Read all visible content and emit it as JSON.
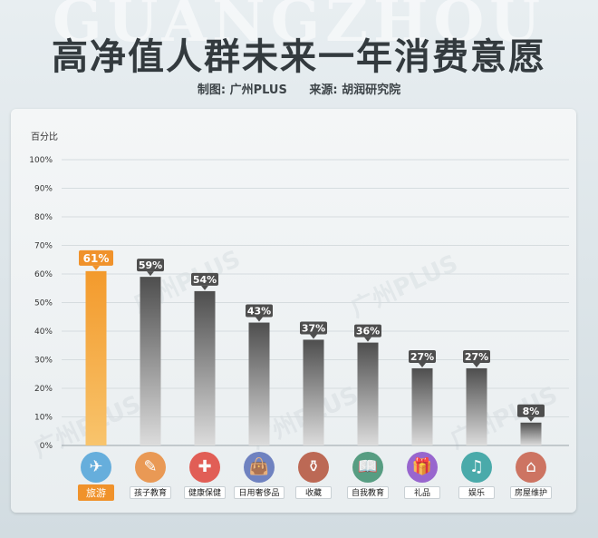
{
  "header": {
    "watermark": "GUANGZHOU",
    "title": "高净值人群未来一年消费意愿",
    "credit_maker": "制图: 广州PLUS",
    "credit_source": "来源: 胡润研究院"
  },
  "watermark_small": "广州PLUS",
  "colors": {
    "highlight": "#f0922b",
    "bar_dark": "#4e4e4e",
    "bar_light": "#dcdcdc"
  },
  "chart_data": {
    "type": "bar",
    "ylabel": "百分比",
    "ylim": [
      0,
      100
    ],
    "yticks": [
      "0%",
      "10%",
      "20%",
      "30%",
      "40%",
      "50%",
      "60%",
      "70%",
      "80%",
      "90%",
      "100%"
    ],
    "grid": true,
    "categories": [
      "旅游",
      "孩子教育",
      "健康保健",
      "日用奢侈品",
      "收藏",
      "自我教育",
      "礼品",
      "娱乐",
      "房屋维护"
    ],
    "values": [
      61,
      59,
      54,
      43,
      37,
      36,
      27,
      27,
      8
    ],
    "value_labels": [
      "61%",
      "59%",
      "54%",
      "43%",
      "37%",
      "36%",
      "27%",
      "27%",
      "8%"
    ],
    "highlight_index": 0,
    "icons": [
      "travel-icon",
      "child-education-icon",
      "health-icon",
      "luxury-goods-icon",
      "collection-icon",
      "self-education-icon",
      "gift-icon",
      "entertainment-icon",
      "house-maintenance-icon"
    ]
  }
}
